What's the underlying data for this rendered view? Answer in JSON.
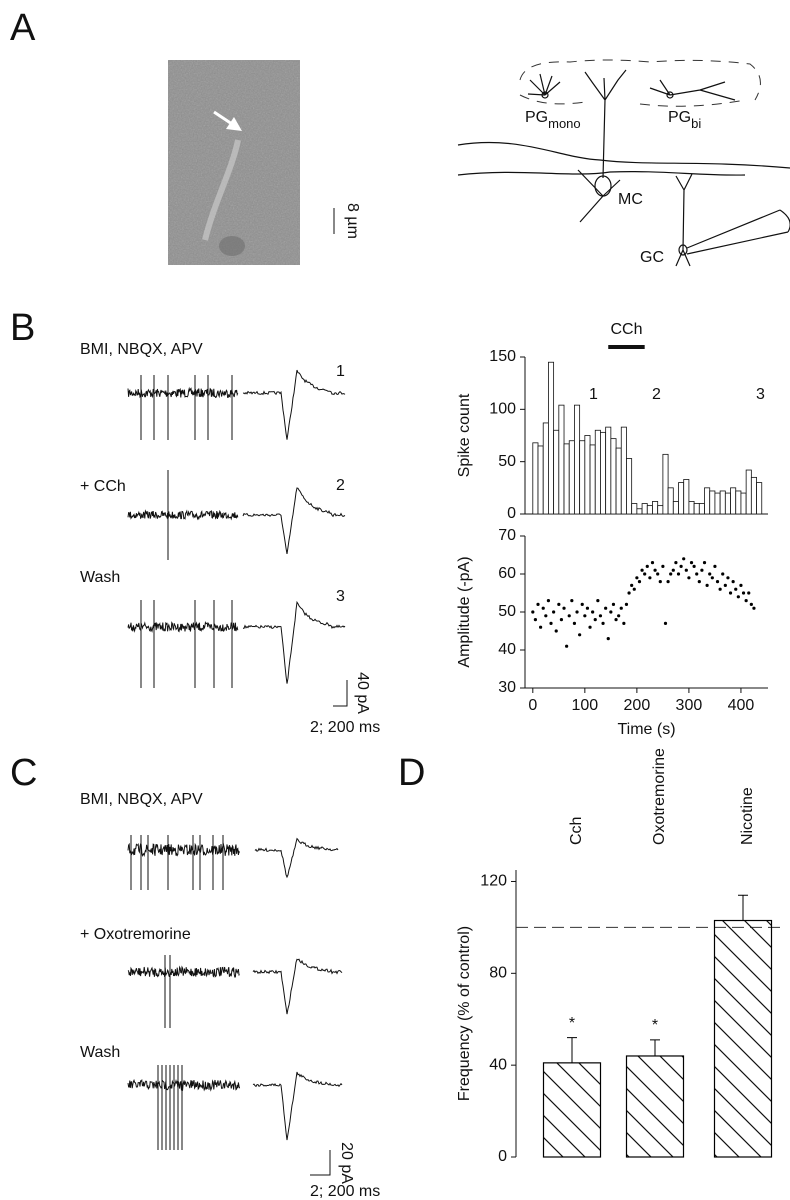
{
  "panel_labels": [
    "A",
    "B",
    "C",
    "D"
  ],
  "panel_a": {
    "scale_bar": "8 µm",
    "labels": [
      {
        "text": "PG",
        "sub": "mono"
      },
      {
        "text": "PG",
        "sub": "bi"
      },
      {
        "text": "MC"
      },
      {
        "text": "GC"
      }
    ]
  },
  "panel_b": {
    "conditions": [
      "BMI, NBQX, APV",
      "+ CCh",
      "Wash"
    ],
    "trace_numbers": [
      "1",
      "2",
      "3"
    ],
    "scale_y": "40 pA",
    "scale_x": "2; 200 ms"
  },
  "panel_c": {
    "conditions": [
      "BMI, NBQX, APV",
      "+ Oxotremorine",
      "Wash"
    ],
    "scale_y": "20 pA",
    "scale_x": "2; 200 ms"
  },
  "chart_data": [
    {
      "type": "histogram",
      "ylabel": "Spike count",
      "color": "#ffffff",
      "bins": [
        0,
        10,
        20,
        30,
        40,
        50,
        60,
        70,
        80,
        90,
        100,
        110,
        120,
        130,
        140,
        150,
        160,
        170,
        180,
        190,
        200,
        210,
        220,
        230,
        240,
        250,
        260,
        270,
        280,
        290,
        300,
        310,
        320,
        330,
        340,
        350,
        360,
        370,
        380,
        390,
        400,
        410,
        420,
        430,
        440
      ],
      "values": [
        68,
        65,
        87,
        145,
        80,
        104,
        67,
        70,
        104,
        70,
        75,
        66,
        80,
        78,
        83,
        72,
        63,
        83,
        53,
        10,
        5,
        10,
        8,
        12,
        8,
        57,
        25,
        12,
        30,
        33,
        12,
        10,
        10,
        25,
        22,
        20,
        22,
        20,
        25,
        22,
        20,
        42,
        35,
        30
      ],
      "xlim": [
        -15,
        452
      ],
      "ylim": [
        0,
        150
      ],
      "yticks": [
        0,
        50,
        100,
        150
      ],
      "cch_label": "CCh",
      "cch_period": [
        145,
        215
      ]
    },
    {
      "type": "scatter",
      "xlabel": "Time (s)",
      "ylabel": "Amplitude (-pA)",
      "color": "#000000",
      "x": [
        0,
        5,
        10,
        15,
        20,
        25,
        30,
        35,
        40,
        45,
        50,
        55,
        60,
        65,
        70,
        75,
        80,
        85,
        90,
        95,
        100,
        105,
        110,
        115,
        120,
        125,
        130,
        135,
        140,
        145,
        150,
        155,
        160,
        165,
        170,
        175,
        180,
        185,
        190,
        195,
        200,
        205,
        210,
        215,
        220,
        225,
        230,
        235,
        240,
        245,
        250,
        255,
        260,
        265,
        270,
        275,
        280,
        285,
        290,
        295,
        300,
        305,
        310,
        315,
        320,
        325,
        330,
        335,
        340,
        345,
        350,
        355,
        360,
        365,
        370,
        375,
        380,
        385,
        390,
        395,
        400,
        405,
        410,
        415,
        420,
        425
      ],
      "values": [
        50,
        48,
        52,
        46,
        51,
        49,
        53,
        47,
        50,
        45,
        52,
        48,
        51,
        41,
        49,
        53,
        47,
        50,
        44,
        52,
        49,
        51,
        46,
        50,
        48,
        53,
        49,
        47,
        51,
        43,
        50,
        52,
        48,
        49,
        51,
        47,
        52,
        55,
        57,
        56,
        59,
        58,
        61,
        60,
        62,
        59,
        63,
        61,
        60,
        58,
        62,
        47,
        58,
        60,
        61,
        63,
        60,
        62,
        64,
        61,
        59,
        63,
        62,
        60,
        58,
        61,
        63,
        57,
        60,
        59,
        62,
        58,
        56,
        60,
        57,
        59,
        55,
        58,
        56,
        54,
        57,
        55,
        53,
        55,
        52,
        51
      ],
      "xlim": [
        -15,
        452
      ],
      "ylim": [
        30,
        70
      ],
      "xticks": [
        0,
        100,
        200,
        300,
        400
      ],
      "yticks": [
        30,
        40,
        50,
        60,
        70
      ]
    },
    {
      "type": "bar",
      "ylabel": "Frequency (% of control)",
      "color": "#000000",
      "categories": [
        "Cch",
        "Oxotremorine",
        "Nicotine"
      ],
      "values": [
        41,
        44,
        103
      ],
      "errors": [
        11,
        7,
        11
      ],
      "significance": [
        "*",
        "*",
        null
      ],
      "reference_line": 100,
      "ylim": [
        0,
        125
      ],
      "yticks": [
        0,
        40,
        80,
        120
      ]
    }
  ]
}
